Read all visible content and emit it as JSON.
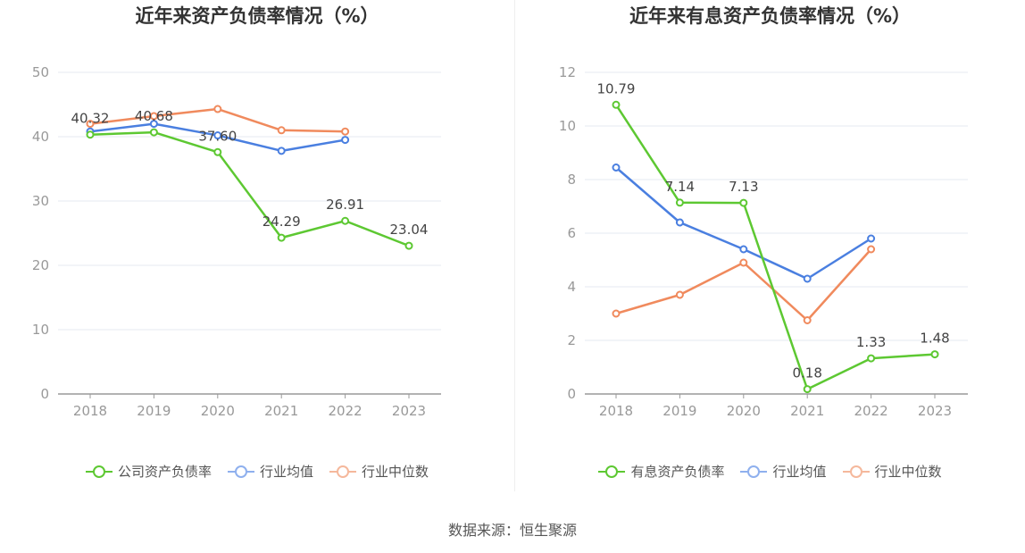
{
  "source": "数据来源：恒生聚源",
  "chart_data": [
    {
      "type": "line",
      "title": "近年来资产负债率情况（%）",
      "x": [
        "2018",
        "2019",
        "2020",
        "2021",
        "2022",
        "2023"
      ],
      "ylim": [
        0,
        50
      ],
      "yticks": [
        0,
        10,
        20,
        30,
        40,
        50
      ],
      "grid": true,
      "legend_position": "bottom",
      "series": [
        {
          "name": "公司资产负债率",
          "color": "#5dc832",
          "values": [
            40.32,
            40.68,
            37.6,
            24.29,
            26.91,
            23.04
          ],
          "labels": [
            "40.32",
            "40.68",
            "37.60",
            "24.29",
            "26.91",
            "23.04"
          ]
        },
        {
          "name": "行业均值",
          "color": "#4a7fe0",
          "values": [
            40.8,
            42.0,
            40.2,
            37.8,
            39.5,
            null
          ]
        },
        {
          "name": "行业中位数",
          "color": "#f08a5d",
          "values": [
            42.0,
            43.2,
            44.3,
            41.0,
            40.8,
            null
          ]
        }
      ]
    },
    {
      "type": "line",
      "title": "近年来有息资产负债率情况（%）",
      "x": [
        "2018",
        "2019",
        "2020",
        "2021",
        "2022",
        "2023"
      ],
      "ylim": [
        0,
        12
      ],
      "yticks": [
        0,
        2,
        4,
        6,
        8,
        10,
        12
      ],
      "grid": true,
      "legend_position": "bottom",
      "series": [
        {
          "name": "有息资产负债率",
          "color": "#5dc832",
          "values": [
            10.79,
            7.14,
            7.13,
            0.18,
            1.33,
            1.48
          ],
          "labels": [
            "10.79",
            "7.14",
            "7.13",
            "0.18",
            "1.33",
            "1.48"
          ]
        },
        {
          "name": "行业均值",
          "color": "#4a7fe0",
          "values": [
            8.45,
            6.4,
            5.4,
            4.3,
            5.8,
            null
          ]
        },
        {
          "name": "行业中位数",
          "color": "#f08a5d",
          "values": [
            3.0,
            3.7,
            4.9,
            2.75,
            5.4,
            null
          ]
        }
      ]
    }
  ]
}
